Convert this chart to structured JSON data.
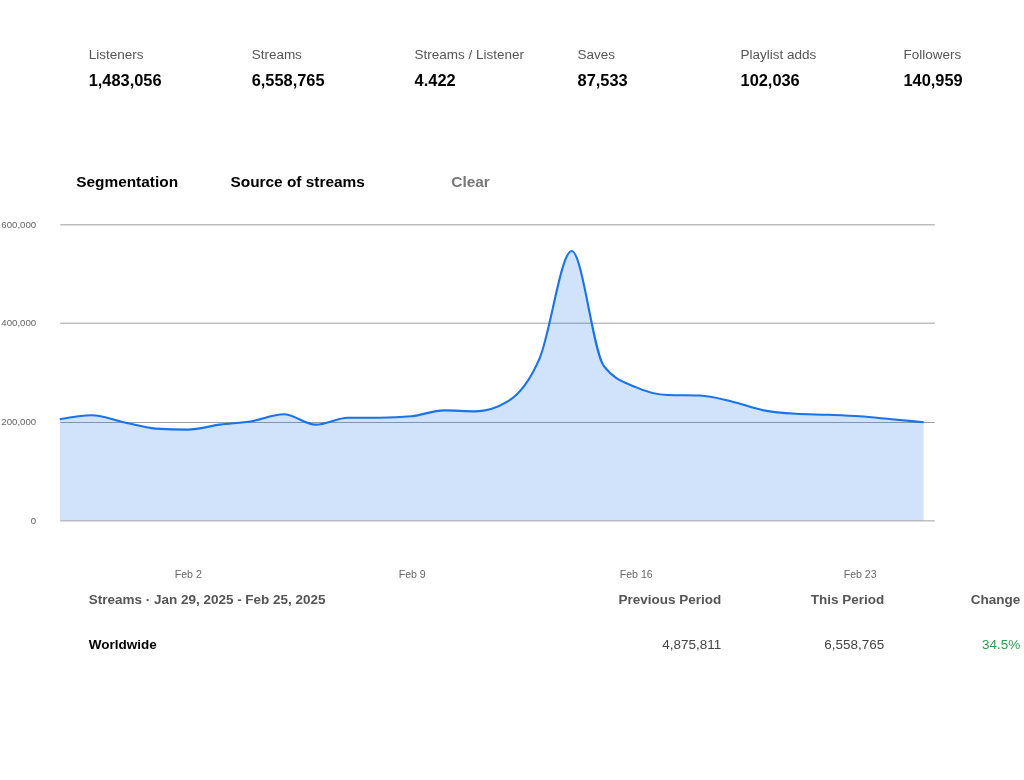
{
  "chart_data": {
    "type": "area",
    "x": [
      "2025-01-29",
      "2025-01-30",
      "2025-01-31",
      "2025-02-01",
      "2025-02-02",
      "2025-02-03",
      "2025-02-04",
      "2025-02-05",
      "2025-02-06",
      "2025-02-07",
      "2025-02-08",
      "2025-02-09",
      "2025-02-10",
      "2025-02-11",
      "2025-02-12",
      "2025-02-13",
      "2025-02-14",
      "2025-02-15",
      "2025-02-16",
      "2025-02-17",
      "2025-02-18",
      "2025-02-19",
      "2025-02-20",
      "2025-02-21",
      "2025-02-22",
      "2025-02-23",
      "2025-02-24",
      "2025-02-25"
    ],
    "series": [
      {
        "color": "#1a73e8",
        "values": [
          205000,
          213000,
          199000,
          186000,
          184000,
          194000,
          201000,
          215000,
          194000,
          208000,
          208000,
          211000,
          223000,
          221000,
          241000,
          329000,
          546000,
          313000,
          270000,
          254000,
          253000,
          241000,
          223000,
          216000,
          214000,
          211000,
          205000,
          199000
        ]
      }
    ],
    "xlim": [
      "2025-01-29",
      "2025-02-25T08:00"
    ],
    "xticks": [
      {
        "value": "2025-02-02",
        "label": "Feb 2"
      },
      {
        "value": "2025-02-09",
        "label": "Feb 9"
      },
      {
        "value": "2025-02-16",
        "label": "Feb 16"
      },
      {
        "value": "2025-02-23",
        "label": "Feb 23"
      }
    ],
    "ylim": [
      0,
      600000
    ],
    "yticks": [
      0,
      {
        "value": 200000,
        "label": "200,000"
      },
      {
        "value": 400000,
        "label": "400,000"
      },
      {
        "value": 600000,
        "label": "600,000"
      }
    ],
    "grid": "y",
    "annotations": [
      "Listeners",
      "1,483,056",
      "Streams",
      "6,558,765",
      "Streams / Listener",
      "4.422",
      "Saves",
      "87,533",
      "Playlist adds",
      "102,036",
      "Followers",
      "140,959",
      "Segmentation",
      "Source of streams",
      "Clear",
      "Streams · Jan 29, 2025 - Feb 25, 2025",
      "Previous Period",
      "This Period",
      "Change",
      "Worldwide",
      "4,875,811",
      "6,558,765",
      "34.5%"
    ]
  }
}
